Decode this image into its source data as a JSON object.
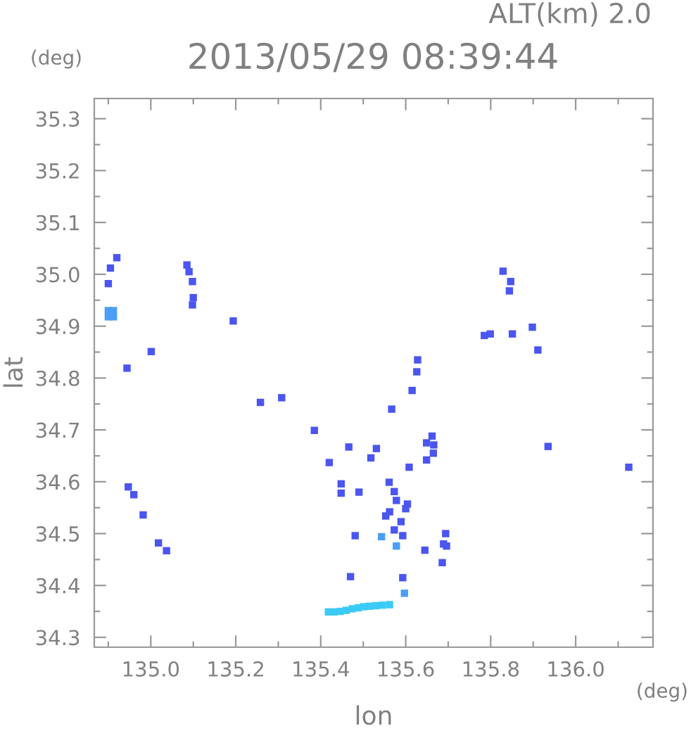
{
  "chart_data": {
    "type": "scatter",
    "title": "2013/05/29 08:39:44",
    "subtitle": "ALT(km) 2.0",
    "xlabel": "lon",
    "ylabel": "lat",
    "annotations": [
      "(deg)",
      "(deg)"
    ],
    "marker": "square",
    "grid": false,
    "xlim": [
      134.867,
      136.182
    ],
    "ylim": [
      34.281,
      35.339
    ],
    "xticks": [
      {
        "value": 134.9,
        "label": null
      },
      {
        "value": 135.0,
        "label": "135.0"
      },
      {
        "value": 135.1,
        "label": null
      },
      135.2,
      {
        "value": 135.3,
        "label": null
      },
      135.4,
      {
        "value": 135.5,
        "label": null
      },
      135.6,
      {
        "value": 135.7,
        "label": null
      },
      135.8,
      {
        "value": 135.9,
        "label": null
      },
      {
        "value": 136.0,
        "label": "136.0"
      },
      {
        "value": 136.1,
        "label": null
      }
    ],
    "yticks": [
      34.3,
      {
        "value": 34.35,
        "label": null
      },
      34.4,
      {
        "value": 34.45,
        "label": null
      },
      34.5,
      {
        "value": 34.55,
        "label": null
      },
      34.6,
      {
        "value": 34.65,
        "label": null
      },
      34.7,
      {
        "value": 34.75,
        "label": null
      },
      34.8,
      {
        "value": 34.85,
        "label": null
      },
      34.9,
      {
        "value": 34.95,
        "label": null
      },
      {
        "value": 35.0,
        "label": "35.0"
      },
      {
        "value": 35.05,
        "label": null
      },
      35.1,
      {
        "value": 35.15,
        "label": null
      },
      35.2,
      {
        "value": 35.25,
        "label": null
      },
      35.3
    ],
    "series": [
      {
        "color": "#4b55f0",
        "x": [
          134.905,
          134.92,
          134.9,
          134.944,
          135.001,
          135.085,
          135.09,
          135.098,
          135.1,
          135.098,
          135.194,
          135.258,
          135.308,
          134.947,
          134.96,
          134.982,
          135.018,
          135.037,
          135.898,
          135.851,
          135.799,
          135.785,
          135.911,
          135.829,
          135.847,
          135.844,
          135.628,
          135.626,
          135.615,
          135.567,
          135.385,
          135.466,
          135.531,
          135.518,
          135.42,
          135.662,
          135.649,
          135.666,
          135.665,
          135.649,
          135.608,
          135.935,
          136.125,
          135.448,
          135.448,
          135.49,
          135.561,
          135.573,
          135.578,
          135.604,
          135.6,
          135.562,
          135.553,
          135.589,
          135.573,
          135.593,
          135.481,
          135.645,
          135.694,
          135.689,
          135.696,
          135.686,
          135.47,
          135.593
        ],
        "values": [
          35.012,
          35.032,
          34.982,
          34.819,
          34.851,
          35.018,
          35.005,
          34.986,
          34.955,
          34.941,
          34.91,
          34.753,
          34.762,
          34.59,
          34.575,
          34.536,
          34.482,
          34.467,
          34.898,
          34.885,
          34.885,
          34.882,
          34.854,
          35.006,
          34.986,
          34.968,
          34.835,
          34.812,
          34.776,
          34.74,
          34.699,
          34.667,
          34.664,
          34.646,
          34.637,
          34.688,
          34.675,
          34.671,
          34.655,
          34.642,
          34.628,
          34.668,
          34.628,
          34.596,
          34.578,
          34.58,
          34.599,
          34.581,
          34.564,
          34.557,
          34.548,
          34.542,
          34.534,
          34.523,
          34.507,
          34.496,
          34.496,
          34.468,
          34.5,
          34.48,
          34.476,
          34.444,
          34.417,
          34.415
        ]
      },
      {
        "color": "#4a9ef5",
        "x": [
          134.9,
          134.912,
          134.9,
          134.912,
          135.543,
          135.578,
          135.597
        ],
        "values": [
          34.93,
          34.93,
          34.918,
          34.918,
          34.494,
          34.476,
          34.385
        ]
      },
      {
        "color": "#3ccaf7",
        "x": [
          135.418,
          135.432,
          135.446,
          135.46,
          135.474,
          135.488,
          135.501,
          135.515,
          135.529,
          135.545,
          135.562
        ],
        "values": [
          34.349,
          34.349,
          34.35,
          34.352,
          34.355,
          34.357,
          34.359,
          34.36,
          34.361,
          34.362,
          34.363
        ]
      }
    ]
  }
}
